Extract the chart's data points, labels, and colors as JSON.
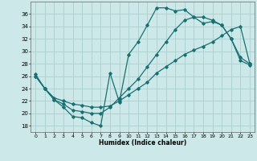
{
  "title": "",
  "xlabel": "Humidex (Indice chaleur)",
  "bg_color": "#cce8e8",
  "grid_color": "#aacfcf",
  "line_color": "#1a7070",
  "marker": "D",
  "markersize": 1.8,
  "linewidth": 0.9,
  "xlim": [
    -0.5,
    23.5
  ],
  "ylim": [
    17,
    38
  ],
  "yticks": [
    18,
    20,
    22,
    24,
    26,
    28,
    30,
    32,
    34,
    36
  ],
  "xticks": [
    0,
    1,
    2,
    3,
    4,
    5,
    6,
    7,
    8,
    9,
    10,
    11,
    12,
    13,
    14,
    15,
    16,
    17,
    18,
    19,
    20,
    21,
    22,
    23
  ],
  "line1_x": [
    0,
    1,
    2,
    3,
    4,
    5,
    6,
    7,
    8,
    9,
    10,
    11,
    12,
    13,
    14,
    15,
    16,
    17,
    18,
    19,
    20,
    21,
    22,
    23
  ],
  "line1_y": [
    26.3,
    24.0,
    22.2,
    21.0,
    19.5,
    19.3,
    18.5,
    18.0,
    26.5,
    21.8,
    29.5,
    31.5,
    34.2,
    37.0,
    37.0,
    36.5,
    36.7,
    35.5,
    34.5,
    34.8,
    34.2,
    32.0,
    28.5,
    27.8
  ],
  "line2_x": [
    0,
    1,
    2,
    3,
    4,
    5,
    6,
    7,
    8,
    9,
    10,
    11,
    12,
    13,
    14,
    15,
    16,
    17,
    18,
    19,
    20,
    21,
    22,
    23
  ],
  "line2_y": [
    26.0,
    24.0,
    22.5,
    22.0,
    21.5,
    21.3,
    21.0,
    21.0,
    21.2,
    22.0,
    23.0,
    24.0,
    25.0,
    26.5,
    27.5,
    28.5,
    29.5,
    30.2,
    30.8,
    31.5,
    32.5,
    33.5,
    34.0,
    28.0
  ],
  "line3_x": [
    0,
    1,
    2,
    3,
    4,
    5,
    6,
    7,
    8,
    9,
    10,
    11,
    12,
    13,
    14,
    15,
    16,
    17,
    18,
    19,
    20,
    21,
    22,
    23
  ],
  "line3_y": [
    26.0,
    24.0,
    22.2,
    21.5,
    20.5,
    20.3,
    20.0,
    20.0,
    21.0,
    22.5,
    24.0,
    25.5,
    27.5,
    29.5,
    31.5,
    33.5,
    35.0,
    35.5,
    35.5,
    35.0,
    34.2,
    32.0,
    29.0,
    28.0
  ]
}
